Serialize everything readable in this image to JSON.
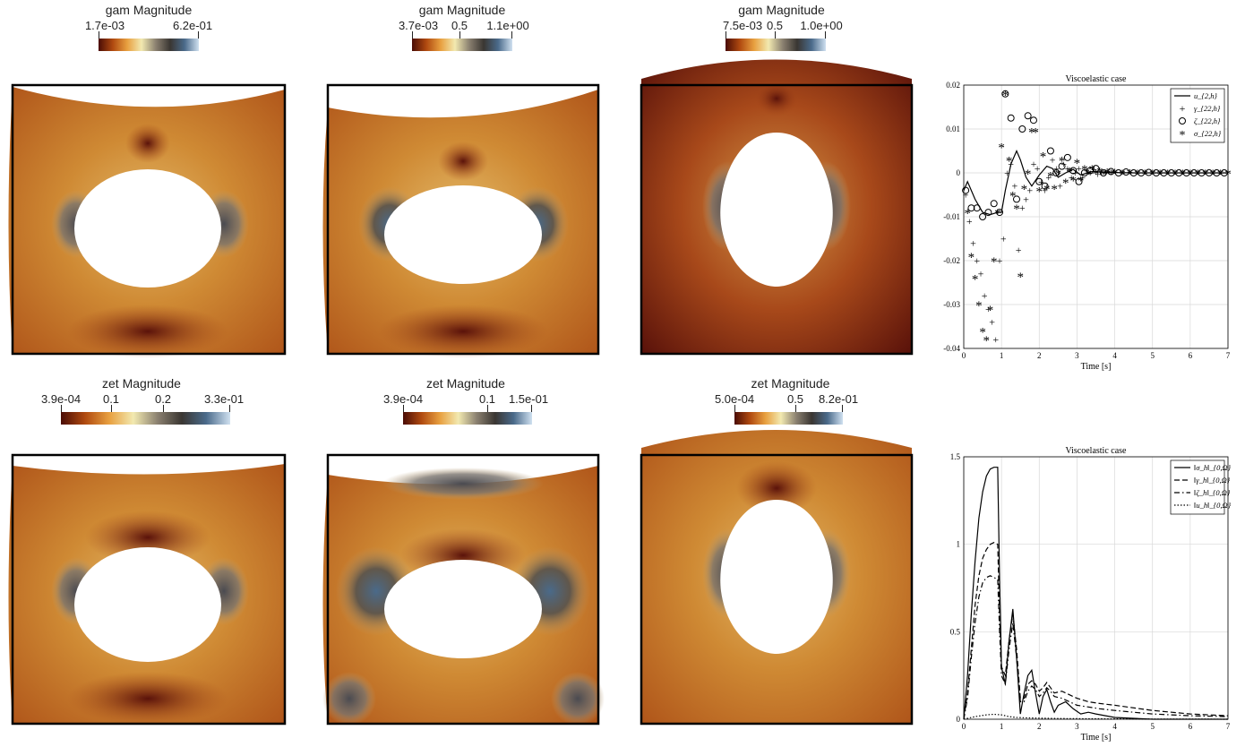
{
  "colors": {
    "dark": "#4a0c05",
    "deep": "#8a2a0a",
    "orange": "#c0601a",
    "ochre": "#d49a4a",
    "cream": "#f2e9b0",
    "grey": "#6e6660",
    "darkgrey": "#3a3632",
    "blue": "#4a6a8a",
    "lightblue": "#cfe0f0"
  },
  "colorbars": [
    {
      "title": "gam Magnitude",
      "ticks": [
        "1.7e-03",
        "6.2e-01"
      ]
    },
    {
      "title": "gam Magnitude",
      "ticks": [
        "3.7e-03",
        "0.5",
        "1.1e+00"
      ]
    },
    {
      "title": "gam Magnitude",
      "ticks": [
        "7.5e-03",
        "0.5",
        "1.0e+00"
      ]
    },
    {
      "title": "zet Magnitude",
      "ticks": [
        "3.9e-04",
        "0.1",
        "0.2",
        "3.3e-01"
      ]
    },
    {
      "title": "zet Magnitude",
      "ticks": [
        "3.9e-04",
        "0.1",
        "1.5e-01"
      ]
    },
    {
      "title": "zet Magnitude",
      "ticks": [
        "5.0e-04",
        "0.5",
        "8.2e-01"
      ]
    }
  ],
  "chart_data": [
    {
      "type": "line",
      "title": "Viscoelastic case",
      "xlabel": "Time [s]",
      "ylabel": "",
      "xlim": [
        0,
        7
      ],
      "ylim": [
        -0.04,
        0.02
      ],
      "xticks": [
        "0",
        "1",
        "2",
        "3",
        "4",
        "5",
        "6",
        "7"
      ],
      "yticks": [
        "-0.04",
        "-0.03",
        "-0.02",
        "-0.01",
        "0",
        "0.01",
        "0.02"
      ],
      "grid": true,
      "legend": "top-right",
      "series": [
        {
          "name": "u_{2,h}",
          "style": "solid",
          "x": [
            0,
            0.1,
            0.3,
            0.5,
            0.7,
            0.9,
            1.0,
            1.1,
            1.25,
            1.4,
            1.5,
            1.65,
            1.8,
            2.0,
            2.2,
            2.35,
            2.5,
            2.7,
            2.9,
            3.1,
            3.4,
            3.8,
            4.5,
            5.5,
            7.0
          ],
          "y": [
            -0.004,
            -0.002,
            -0.006,
            -0.009,
            -0.0095,
            -0.009,
            -0.009,
            -0.004,
            0.002,
            0.005,
            0.003,
            -0.001,
            -0.003,
            -0.0005,
            0.0015,
            0.001,
            -0.001,
            0.0,
            0.0008,
            -0.0005,
            0.0003,
            0.0001,
            0.0,
            0.0,
            0.0
          ]
        },
        {
          "name": "γ_{22,h}",
          "marker": "+",
          "x": [
            0.05,
            0.15,
            0.25,
            0.35,
            0.45,
            0.55,
            0.65,
            0.75,
            0.85,
            0.95,
            1.05,
            1.15,
            1.25,
            1.35,
            1.45,
            1.55,
            1.65,
            1.75,
            1.85,
            1.95,
            2.05,
            2.15,
            2.25,
            2.35,
            2.45,
            2.55,
            2.65,
            2.75,
            2.85,
            2.95,
            3.05,
            3.15,
            3.25,
            3.35,
            3.45,
            3.55,
            3.65,
            3.75
          ],
          "y": [
            -0.005,
            -0.011,
            -0.016,
            -0.02,
            -0.023,
            -0.028,
            -0.031,
            -0.034,
            -0.038,
            -0.02,
            -0.015,
            0.0,
            0.002,
            -0.003,
            -0.0175,
            -0.008,
            -0.006,
            -0.004,
            0.002,
            0.001,
            -0.002,
            -0.004,
            -0.001,
            0.003,
            0.001,
            -0.003,
            0.002,
            0.001,
            -0.001,
            0.0,
            0.001,
            -0.001,
            0.0005,
            0.0,
            0.0008,
            -0.0003,
            0.0002,
            0.0
          ]
        },
        {
          "name": "ζ_{22,h}",
          "marker": "o",
          "x": [
            0.05,
            0.2,
            0.35,
            0.5,
            0.65,
            0.8,
            0.95,
            1.1,
            1.25,
            1.4,
            1.55,
            1.7,
            1.85,
            2.0,
            2.15,
            2.3,
            2.45,
            2.6,
            2.75,
            2.9,
            3.05,
            3.2,
            3.35,
            3.5,
            3.7,
            3.9,
            4.1,
            4.3,
            4.5,
            4.7,
            4.9,
            5.1,
            5.3,
            5.5,
            5.7,
            5.9,
            6.1,
            6.3,
            6.5,
            6.7,
            6.9
          ],
          "y": [
            -0.004,
            -0.008,
            -0.008,
            -0.01,
            -0.009,
            -0.007,
            -0.009,
            0.018,
            0.0125,
            -0.006,
            0.01,
            0.013,
            0.012,
            -0.002,
            -0.003,
            0.005,
            0.0,
            0.0015,
            0.0035,
            0.0005,
            -0.002,
            0.0,
            0.0005,
            0.001,
            0.0,
            0.0003,
            0.0,
            0.0002,
            0.0,
            0.0,
            0.0001,
            0.0,
            0.0,
            0.0,
            0.0,
            0.0,
            0.0,
            0.0,
            0.0,
            0.0,
            0.0
          ]
        },
        {
          "name": "σ_{22,h}",
          "marker": "*",
          "x": [
            0.1,
            0.2,
            0.3,
            0.4,
            0.5,
            0.6,
            0.7,
            0.8,
            0.9,
            1.0,
            1.1,
            1.2,
            1.3,
            1.4,
            1.5,
            1.6,
            1.7,
            1.8,
            1.9,
            2.0,
            2.1,
            2.2,
            2.3,
            2.4,
            2.5,
            2.6,
            2.7,
            2.8,
            2.9,
            3.0,
            3.1,
            3.2,
            3.3,
            3.4,
            3.5,
            3.6,
            3.7,
            3.8,
            3.9,
            4.0,
            4.2,
            4.4,
            4.6,
            4.8,
            5.0,
            5.2,
            5.4,
            5.6,
            5.8,
            6.0,
            6.2,
            6.4,
            6.6,
            6.8,
            7.0
          ],
          "y": [
            -0.009,
            -0.019,
            -0.024,
            -0.03,
            -0.036,
            -0.038,
            -0.031,
            -0.02,
            -0.009,
            0.006,
            0.018,
            0.003,
            -0.005,
            -0.008,
            -0.0235,
            -0.0035,
            0.0,
            0.0095,
            0.0095,
            -0.004,
            0.004,
            -0.0035,
            -0.0005,
            -0.0035,
            0.0,
            0.003,
            -0.002,
            0.0005,
            -0.0015,
            0.0025,
            -0.0015,
            0.001,
            0.0,
            0.001,
            0.0,
            0.0005,
            0.0,
            0.0003,
            0.0,
            0.0002,
            0.0,
            0.0001,
            0.0,
            0.0,
            0.0,
            0.0,
            0.0,
            0.0,
            0.0,
            0.0,
            0.0,
            0.0,
            0.0,
            0.0,
            0.0
          ]
        }
      ]
    },
    {
      "type": "line",
      "title": "Viscoelastic case",
      "xlabel": "Time [s]",
      "ylabel": "",
      "xlim": [
        0,
        7
      ],
      "ylim": [
        0,
        1.5
      ],
      "xticks": [
        "0",
        "1",
        "2",
        "3",
        "4",
        "5",
        "6",
        "7"
      ],
      "yticks": [
        "0",
        "0.5",
        "1",
        "1.5"
      ],
      "grid": true,
      "legend": "top-right",
      "series": [
        {
          "name": "‖σ_h‖_{0,Ω}",
          "style": "solid",
          "x": [
            0,
            0.1,
            0.2,
            0.3,
            0.4,
            0.5,
            0.6,
            0.7,
            0.8,
            0.9,
            0.95,
            1.0,
            1.1,
            1.2,
            1.3,
            1.4,
            1.5,
            1.6,
            1.7,
            1.8,
            1.9,
            2.0,
            2.1,
            2.2,
            2.3,
            2.4,
            2.5,
            2.7,
            2.9,
            3.1,
            3.3,
            3.5,
            4.0,
            5.0,
            6.0,
            7.0
          ],
          "y": [
            0.0,
            0.25,
            0.6,
            0.9,
            1.15,
            1.3,
            1.39,
            1.43,
            1.44,
            1.44,
            0.8,
            0.3,
            0.2,
            0.45,
            0.63,
            0.35,
            0.03,
            0.15,
            0.25,
            0.28,
            0.15,
            0.03,
            0.13,
            0.17,
            0.1,
            0.04,
            0.08,
            0.1,
            0.06,
            0.03,
            0.04,
            0.03,
            0.01,
            0.0,
            0.0,
            0.0
          ]
        },
        {
          "name": "‖γ_h‖_{0,Ω}",
          "style": "dashed",
          "x": [
            0,
            0.1,
            0.2,
            0.3,
            0.4,
            0.5,
            0.6,
            0.7,
            0.8,
            0.9,
            0.95,
            1.0,
            1.1,
            1.2,
            1.3,
            1.4,
            1.5,
            1.6,
            1.7,
            1.8,
            1.9,
            2.0,
            2.1,
            2.2,
            2.3,
            2.4,
            2.6,
            2.8,
            3.0,
            3.3,
            3.6,
            4.0,
            5.0,
            6.0,
            7.0
          ],
          "y": [
            0.0,
            0.15,
            0.4,
            0.65,
            0.82,
            0.92,
            0.97,
            1.0,
            1.01,
            1.0,
            0.6,
            0.3,
            0.25,
            0.45,
            0.6,
            0.4,
            0.12,
            0.12,
            0.2,
            0.22,
            0.2,
            0.16,
            0.18,
            0.21,
            0.18,
            0.15,
            0.16,
            0.14,
            0.12,
            0.1,
            0.09,
            0.08,
            0.05,
            0.03,
            0.02
          ]
        },
        {
          "name": "‖ζ_h‖_{0,Ω}",
          "style": "dashdot",
          "x": [
            0,
            0.1,
            0.2,
            0.3,
            0.4,
            0.5,
            0.6,
            0.7,
            0.8,
            0.9,
            0.95,
            1.0,
            1.1,
            1.2,
            1.3,
            1.4,
            1.5,
            1.6,
            1.7,
            1.8,
            1.9,
            2.0,
            2.1,
            2.2,
            2.3,
            2.4,
            2.6,
            2.8,
            3.0,
            3.3,
            3.6,
            4.0,
            4.5,
            5.0,
            6.0,
            7.0
          ],
          "y": [
            0.0,
            0.12,
            0.35,
            0.55,
            0.7,
            0.78,
            0.81,
            0.82,
            0.81,
            0.8,
            0.5,
            0.25,
            0.2,
            0.4,
            0.55,
            0.35,
            0.1,
            0.1,
            0.16,
            0.19,
            0.17,
            0.13,
            0.15,
            0.18,
            0.16,
            0.13,
            0.12,
            0.1,
            0.08,
            0.07,
            0.06,
            0.05,
            0.04,
            0.03,
            0.02,
            0.015
          ]
        },
        {
          "name": "‖u_h‖_{0,Ω}",
          "style": "dotted",
          "x": [
            0,
            0.3,
            0.6,
            0.8,
            1.0,
            1.2,
            1.4,
            1.6,
            2.0,
            2.5,
            3.0,
            4.0,
            5.0,
            6.0,
            7.0
          ],
          "y": [
            0.0,
            0.015,
            0.025,
            0.028,
            0.025,
            0.015,
            0.01,
            0.008,
            0.006,
            0.004,
            0.003,
            0.002,
            0.001,
            0.001,
            0.0
          ]
        }
      ]
    }
  ]
}
